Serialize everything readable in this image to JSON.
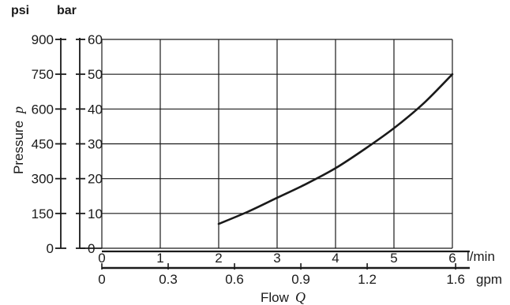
{
  "chart_data": {
    "type": "line",
    "units": {
      "psi": "psi",
      "bar": "bar",
      "lpm": "l/min",
      "gpm": "gpm"
    },
    "ylabel": {
      "text": "Pressure",
      "symbol": "p"
    },
    "xlabel": {
      "text": "Flow",
      "symbol": "Q"
    },
    "y_ticks_psi": [
      "0",
      "150",
      "300",
      "450",
      "600",
      "750",
      "900"
    ],
    "y_ticks_bar": [
      "0",
      "10",
      "20",
      "30",
      "40",
      "50",
      "60"
    ],
    "x_ticks_lpm": [
      "0",
      "1",
      "2",
      "3",
      "4",
      "5",
      "6"
    ],
    "x_ticks_gpm": [
      "0",
      "0.3",
      "0.6",
      "0.9",
      "1.2",
      "1.6"
    ],
    "x_range_lpm": [
      0,
      6
    ],
    "y_range_bar": [
      0,
      60
    ],
    "grid": true,
    "series": [
      {
        "x": [
          2.0,
          2.5,
          3.0,
          3.5,
          4.0,
          4.5,
          5.0,
          5.5,
          6.0
        ],
        "y": [
          7,
          10.5,
          14.5,
          18.5,
          23,
          28.5,
          34.5,
          41.5,
          50
        ]
      }
    ],
    "line_color": "#1a1a1a"
  }
}
